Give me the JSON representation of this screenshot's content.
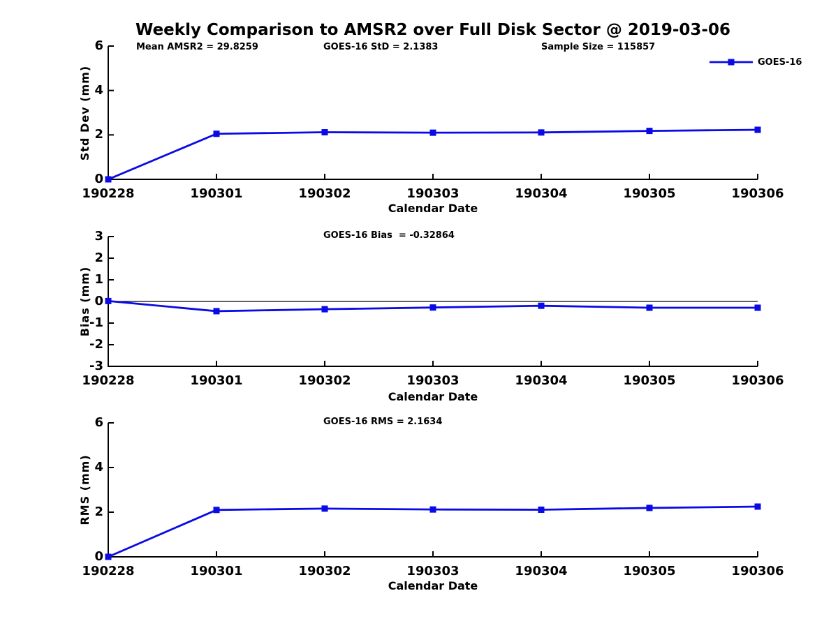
{
  "title": "Weekly Comparison to AMSR2 over Full Disk Sector @ 2019-03-06",
  "colors": {
    "line": "#0a0ae6",
    "axis": "#000000",
    "text": "#000000",
    "background": "#ffffff"
  },
  "chart_data": [
    {
      "type": "line",
      "ylabel": "Std Dev (mm)",
      "xlabel": "Calendar Date",
      "categories": [
        "190228",
        "190301",
        "190302",
        "190303",
        "190304",
        "190305",
        "190306"
      ],
      "series": [
        {
          "name": "GOES-16",
          "values": [
            0.0,
            2.05,
            2.12,
            2.1,
            2.11,
            2.18,
            2.23
          ]
        }
      ],
      "ylim": [
        0,
        6
      ],
      "yticks": [
        0,
        2,
        4,
        6
      ],
      "grid": false,
      "marker": "square",
      "annotations": [
        "Mean AMSR2 = 29.8259",
        "GOES-16 StD = 2.1383",
        "Sample Size = 115857"
      ],
      "legend": {
        "label": "GOES-16",
        "position": "top-right"
      }
    },
    {
      "type": "line",
      "ylabel": "Bias (mm)",
      "xlabel": "Calendar Date",
      "categories": [
        "190228",
        "190301",
        "190302",
        "190303",
        "190304",
        "190305",
        "190306"
      ],
      "series": [
        {
          "name": "GOES-16",
          "values": [
            0.02,
            -0.45,
            -0.36,
            -0.28,
            -0.2,
            -0.29,
            -0.29
          ]
        }
      ],
      "ylim": [
        -3,
        3
      ],
      "yticks": [
        -3,
        -2,
        -1,
        0,
        1,
        2,
        3
      ],
      "grid": false,
      "zero_line": true,
      "marker": "square",
      "annotations": [
        "GOES-16 Bias  = -0.32864"
      ]
    },
    {
      "type": "line",
      "ylabel": "RMS (mm)",
      "xlabel": "Calendar Date",
      "categories": [
        "190228",
        "190301",
        "190302",
        "190303",
        "190304",
        "190305",
        "190306"
      ],
      "series": [
        {
          "name": "GOES-16",
          "values": [
            0.0,
            2.1,
            2.16,
            2.12,
            2.11,
            2.19,
            2.25
          ]
        }
      ],
      "ylim": [
        0,
        6
      ],
      "yticks": [
        0,
        2,
        4,
        6
      ],
      "grid": false,
      "marker": "square",
      "annotations": [
        "GOES-16 RMS = 2.1634"
      ]
    }
  ]
}
